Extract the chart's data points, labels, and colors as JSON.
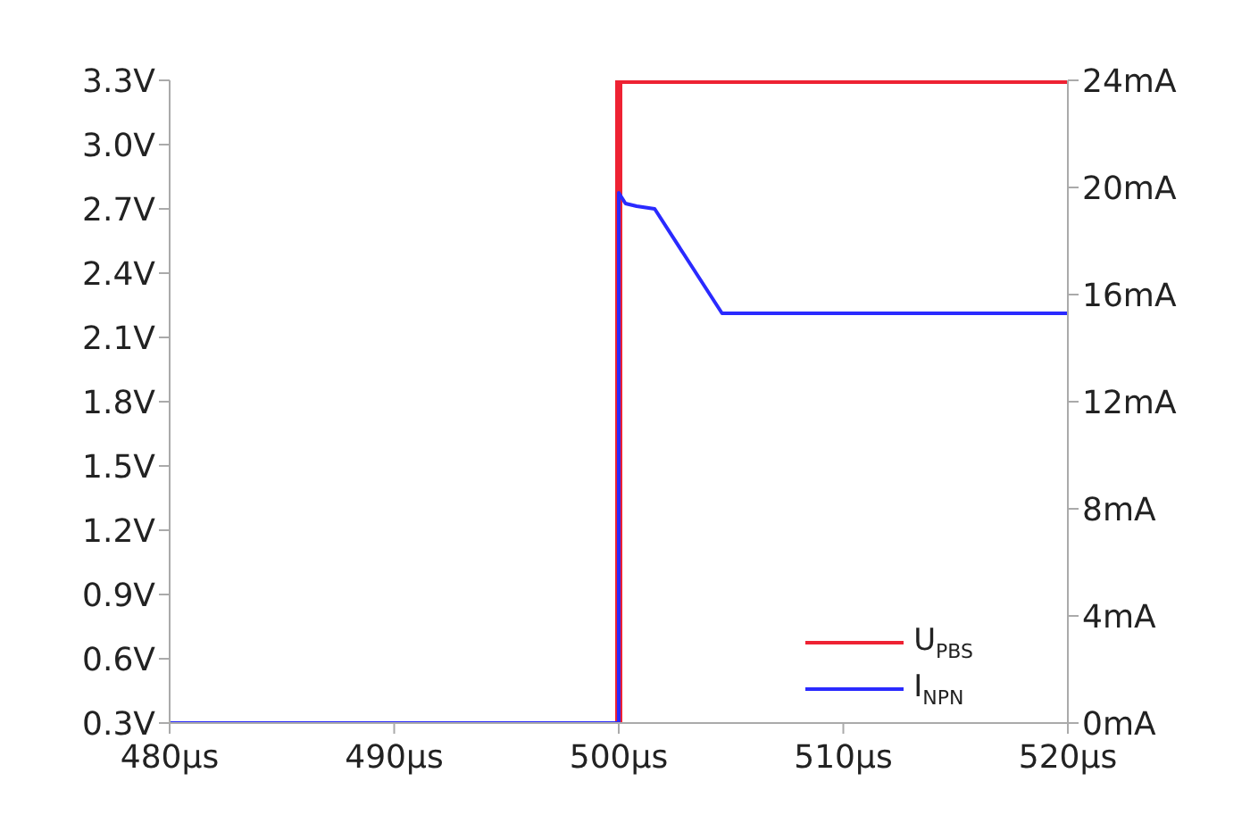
{
  "chart_data": {
    "type": "line",
    "xlim": [
      480,
      520
    ],
    "xticks": [
      {
        "value": 480,
        "label": "480µs"
      },
      {
        "value": 490,
        "label": "490µs"
      },
      {
        "value": 500,
        "label": "500µs"
      },
      {
        "value": 510,
        "label": "510µs"
      },
      {
        "value": 520,
        "label": "520µs"
      }
    ],
    "ylim": [
      0.3,
      3.3
    ],
    "yticks": [
      {
        "value": 0.3,
        "label": "0.3V"
      },
      {
        "value": 0.6,
        "label": "0.6V"
      },
      {
        "value": 0.9,
        "label": "0.9V"
      },
      {
        "value": 1.2,
        "label": "1.2V"
      },
      {
        "value": 1.5,
        "label": "1.5V"
      },
      {
        "value": 1.8,
        "label": "1.8V"
      },
      {
        "value": 2.1,
        "label": "2.1V"
      },
      {
        "value": 2.4,
        "label": "2.4V"
      },
      {
        "value": 2.7,
        "label": "2.7V"
      },
      {
        "value": 3.0,
        "label": "3.0V"
      },
      {
        "value": 3.3,
        "label": "3.3V"
      }
    ],
    "y2lim": [
      0,
      24
    ],
    "y2ticks": [
      {
        "value": 0,
        "label": "0mA"
      },
      {
        "value": 4,
        "label": "4mA"
      },
      {
        "value": 8,
        "label": "8mA"
      },
      {
        "value": 12,
        "label": "12mA"
      },
      {
        "value": 16,
        "label": "16mA"
      },
      {
        "value": 20,
        "label": "20mA"
      },
      {
        "value": 24,
        "label": "24mA"
      }
    ],
    "series": [
      {
        "name": "U$_{PBS}$",
        "color": "#ee2233",
        "x": [
          500,
          500,
          520
        ],
        "values": [
          0.3,
          3.3,
          3.3
        ]
      },
      {
        "name": "I$_{NPN}$",
        "color": "#2a2aff",
        "axis": "y2",
        "x": [
          480,
          500,
          500,
          500.3,
          500.8,
          501.6,
          504.6,
          520
        ],
        "values": [
          0,
          0,
          19.8,
          19.4,
          19.3,
          19.2,
          15.3,
          15.3
        ]
      }
    ],
    "legend": "bottom right",
    "grid": false,
    "marker": "none",
    "line_style": "solid"
  }
}
